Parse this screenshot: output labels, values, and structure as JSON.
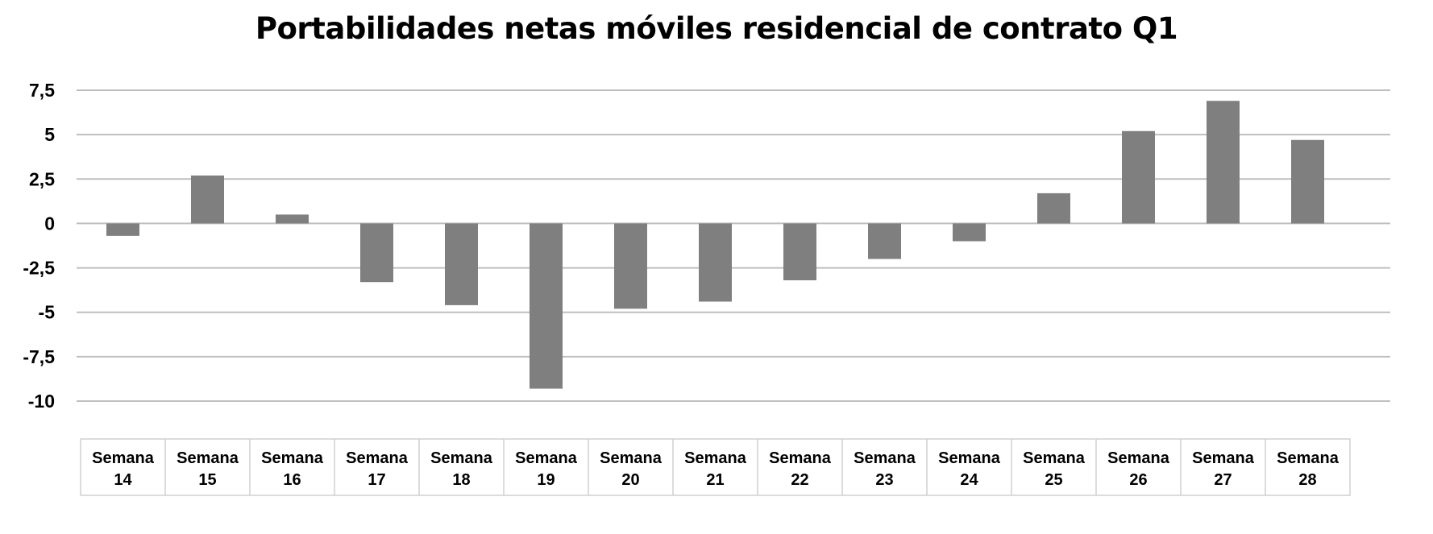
{
  "chart_data": {
    "type": "bar",
    "title": "Portabilidades netas móviles residencial de contrato Q1",
    "xlabel": "",
    "ylabel": "",
    "categories": [
      [
        "Semana",
        "14"
      ],
      [
        "Semana",
        "15"
      ],
      [
        "Semana",
        "16"
      ],
      [
        "Semana",
        "17"
      ],
      [
        "Semana",
        "18"
      ],
      [
        "Semana",
        "19"
      ],
      [
        "Semana",
        "20"
      ],
      [
        "Semana",
        "21"
      ],
      [
        "Semana",
        "22"
      ],
      [
        "Semana",
        "23"
      ],
      [
        "Semana",
        "24"
      ],
      [
        "Semana",
        "25"
      ],
      [
        "Semana",
        "26"
      ],
      [
        "Semana",
        "27"
      ],
      [
        "Semana",
        "28"
      ]
    ],
    "values": [
      -0.7,
      2.7,
      0.5,
      -3.3,
      -4.6,
      -9.3,
      -4.8,
      -4.4,
      -3.2,
      -2.0,
      -1.0,
      1.7,
      5.2,
      6.9,
      4.7
    ],
    "ylim": [
      -10,
      7.5
    ],
    "yticks": [
      7.5,
      5,
      2.5,
      0,
      -2.5,
      -5,
      -7.5,
      -10
    ],
    "ytick_labels": [
      "7,5",
      "5",
      "2,5",
      "0",
      "-2,5",
      "-5",
      "-7,5",
      "-10"
    ],
    "grid": true,
    "legend": "none",
    "colors": {
      "bar": "#7f7f7f",
      "grid": "#bfbfbf",
      "table_border": "#d0d0d0"
    }
  }
}
